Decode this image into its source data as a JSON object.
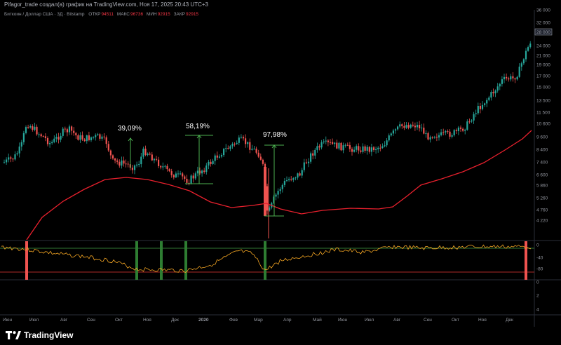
{
  "header": {
    "attribution": "Pifagor_trade создал(а) график на TradingView.com, Ноя 17, 2025 20:43 UTC+3"
  },
  "legend": {
    "symbol": "Биткоин / Доллар США · 3Д · Bitstamp",
    "open_label": "ОТКР",
    "open_value": "94511",
    "high_label": "МАКС",
    "high_value": "96736",
    "low_label": "МИН",
    "low_value": "92915",
    "close_label": "ЗАКР",
    "close_value": "92915"
  },
  "branding": {
    "name": "TradingView"
  },
  "colors": {
    "up": "#26a69a",
    "down": "#ef5350",
    "ma": "#e8202d",
    "oscillator": "#f5a623",
    "signal_bar_green": "#2e7d32",
    "signal_bar_red": "#ef5350",
    "measure": "#4caf50"
  },
  "chart_data": [
    {
      "type": "candlestick",
      "y_scale": "log",
      "price_ticks": [
        "36 000",
        "32 000",
        "28 000",
        "24 000",
        "21 000",
        "19 000",
        "17 000",
        "15 000",
        "13 500",
        "11 500",
        "10 600",
        "9 600",
        "8 400",
        "7 400",
        "6 600",
        "5 860",
        "5 260",
        "4 760",
        "4 220"
      ],
      "current_price_label": "28 000",
      "x_ticks": [
        "Июн",
        "Июл",
        "Авг",
        "Сен",
        "Окт",
        "Ноя",
        "Дек",
        "2020",
        "Фев",
        "Мар",
        "Апр",
        "Май",
        "Июн",
        "Июл",
        "Авг",
        "Сен",
        "Окт",
        "Ноя",
        "Дек"
      ],
      "moving_average": {
        "description": "red long-period moving average"
      },
      "measurements": [
        {
          "label": "39,09%"
        },
        {
          "label": "58,19%"
        },
        {
          "label": "97,98%"
        }
      ]
    },
    {
      "type": "line",
      "panel": "oscillator",
      "y_ticks": [
        "0",
        "-40",
        "-80"
      ],
      "lower_ticks": [
        "0",
        "2",
        "4"
      ],
      "signals": [
        {
          "type": "sell",
          "color": "red"
        },
        {
          "type": "buy",
          "color": "green"
        },
        {
          "type": "buy",
          "color": "green"
        },
        {
          "type": "buy",
          "color": "green"
        },
        {
          "type": "buy",
          "color": "green"
        },
        {
          "type": "sell",
          "color": "red"
        }
      ]
    }
  ]
}
